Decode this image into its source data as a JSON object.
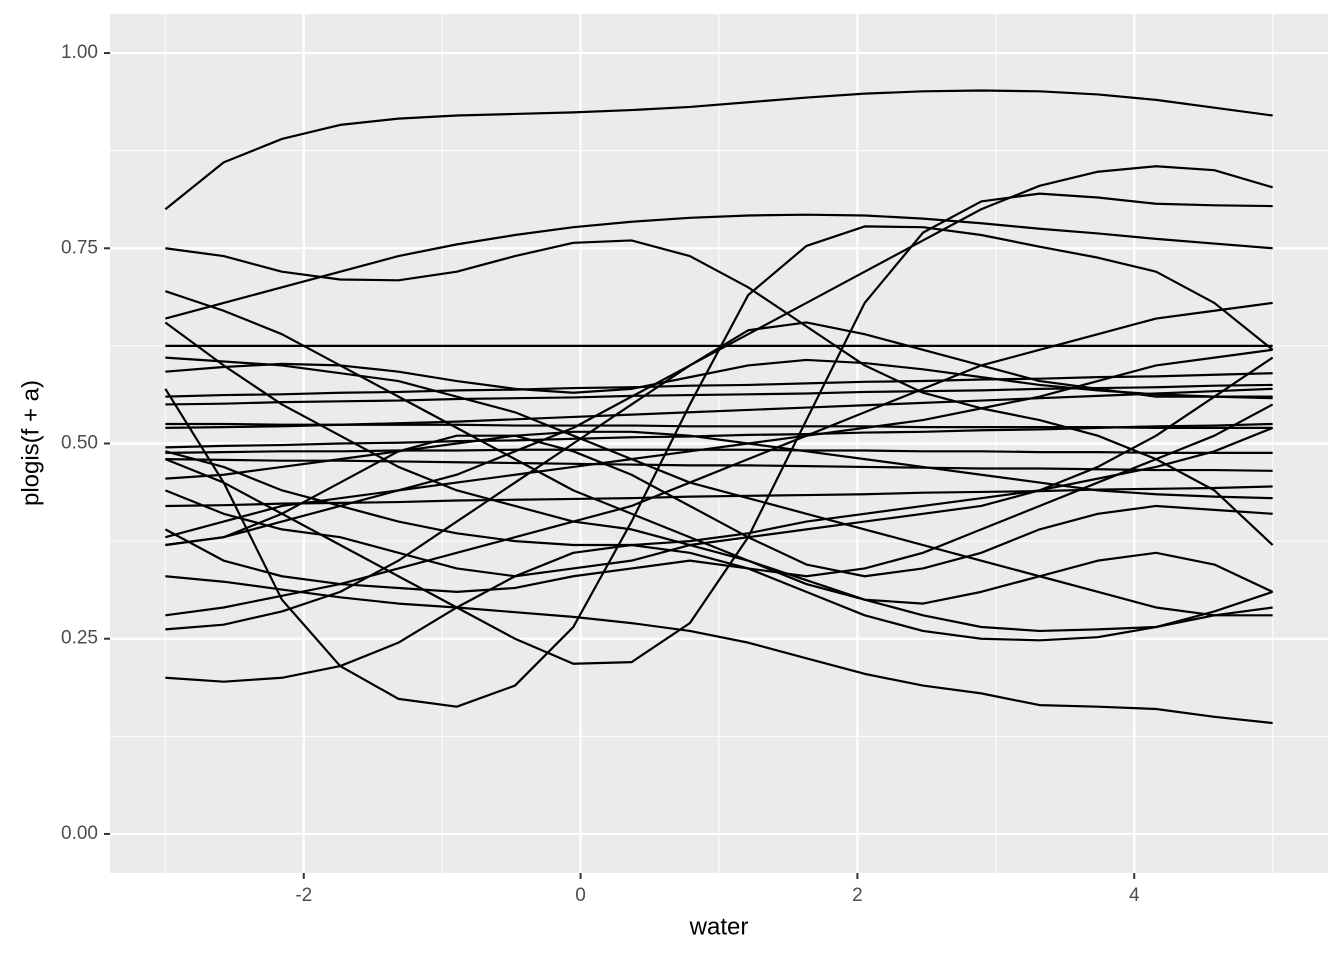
{
  "chart_data": {
    "type": "line",
    "x_label": "water",
    "y_label": "plogis(f + a)",
    "x": [
      -3,
      -2.5789,
      -2.1579,
      -1.7368,
      -1.3158,
      -0.8947,
      -0.4737,
      -0.0526,
      0.3684,
      0.7895,
      1.2105,
      1.6316,
      2.0526,
      2.4737,
      2.8947,
      3.3158,
      3.7368,
      4.1579,
      4.5789,
      5
    ],
    "line_color": "#000000",
    "xlim": [
      -3.4,
      5.4
    ],
    "ylim": [
      -0.05,
      1.05
    ],
    "xticks": [
      -2,
      0,
      2,
      4
    ],
    "yticks": [
      {
        "value": 0,
        "label": "0.00"
      },
      {
        "value": 0.25,
        "label": "0.25"
      },
      {
        "value": 0.5,
        "label": "0.50"
      },
      {
        "value": 0.75,
        "label": "0.75"
      },
      {
        "value": 1,
        "label": "1.00"
      }
    ],
    "grid": true,
    "minor_grid": true,
    "series": [
      {
        "values": [
          0.8,
          0.86,
          0.89,
          0.908,
          0.916,
          0.92,
          0.922,
          0.924,
          0.927,
          0.931,
          0.937,
          0.943,
          0.948,
          0.951,
          0.952,
          0.951,
          0.947,
          0.94,
          0.93,
          0.92
        ]
      },
      {
        "values": [
          0.625,
          0.625,
          0.625,
          0.625,
          0.625,
          0.625,
          0.625,
          0.625,
          0.625,
          0.625,
          0.625,
          0.625,
          0.625,
          0.625,
          0.625,
          0.625,
          0.625,
          0.625,
          0.625,
          0.625
        ]
      },
      {
        "values": [
          0.66,
          0.68,
          0.7,
          0.72,
          0.74,
          0.755,
          0.767,
          0.777,
          0.784,
          0.789,
          0.792,
          0.793,
          0.792,
          0.788,
          0.782,
          0.775,
          0.769,
          0.762,
          0.756,
          0.75
        ]
      },
      {
        "values": [
          0.57,
          0.45,
          0.3,
          0.215,
          0.173,
          0.163,
          0.19,
          0.265,
          0.4,
          0.55,
          0.69,
          0.753,
          0.778,
          0.777,
          0.767,
          0.752,
          0.738,
          0.72,
          0.68,
          0.62
        ]
      },
      {
        "values": [
          0.75,
          0.74,
          0.72,
          0.71,
          0.709,
          0.72,
          0.74,
          0.757,
          0.76,
          0.74,
          0.7,
          0.65,
          0.6,
          0.565,
          0.545,
          0.53,
          0.51,
          0.48,
          0.44,
          0.37
        ]
      },
      {
        "values": [
          0.48,
          0.45,
          0.41,
          0.37,
          0.33,
          0.29,
          0.25,
          0.218,
          0.22,
          0.27,
          0.38,
          0.53,
          0.68,
          0.77,
          0.81,
          0.82,
          0.815,
          0.807,
          0.805,
          0.804
        ]
      },
      {
        "values": [
          0.37,
          0.38,
          0.4,
          0.42,
          0.44,
          0.46,
          0.49,
          0.52,
          0.56,
          0.6,
          0.64,
          0.68,
          0.72,
          0.76,
          0.8,
          0.83,
          0.848,
          0.855,
          0.85,
          0.828
        ]
      },
      {
        "values": [
          0.33,
          0.323,
          0.313,
          0.303,
          0.295,
          0.29,
          0.284,
          0.278,
          0.27,
          0.26,
          0.245,
          0.225,
          0.205,
          0.19,
          0.18,
          0.165,
          0.163,
          0.16,
          0.15,
          0.142
        ]
      },
      {
        "values": [
          0.2,
          0.195,
          0.2,
          0.215,
          0.245,
          0.29,
          0.33,
          0.36,
          0.37,
          0.36,
          0.34,
          0.31,
          0.28,
          0.26,
          0.25,
          0.248,
          0.252,
          0.265,
          0.285,
          0.31
        ]
      },
      {
        "values": [
          0.262,
          0.268,
          0.285,
          0.31,
          0.35,
          0.4,
          0.45,
          0.5,
          0.55,
          0.6,
          0.645,
          0.655,
          0.64,
          0.62,
          0.6,
          0.58,
          0.57,
          0.56,
          0.56,
          0.56
        ]
      },
      {
        "values": [
          0.28,
          0.29,
          0.305,
          0.32,
          0.34,
          0.36,
          0.38,
          0.4,
          0.42,
          0.45,
          0.48,
          0.51,
          0.54,
          0.57,
          0.6,
          0.62,
          0.64,
          0.66,
          0.67,
          0.68
        ]
      },
      {
        "values": [
          0.695,
          0.67,
          0.64,
          0.6,
          0.56,
          0.52,
          0.48,
          0.44,
          0.41,
          0.38,
          0.35,
          0.325,
          0.3,
          0.28,
          0.265,
          0.26,
          0.262,
          0.265,
          0.28,
          0.29
        ]
      },
      {
        "values": [
          0.655,
          0.6,
          0.55,
          0.51,
          0.47,
          0.44,
          0.42,
          0.4,
          0.39,
          0.37,
          0.35,
          0.32,
          0.3,
          0.295,
          0.31,
          0.33,
          0.35,
          0.36,
          0.345,
          0.31
        ]
      },
      {
        "values": [
          0.61,
          0.605,
          0.6,
          0.59,
          0.58,
          0.56,
          0.54,
          0.51,
          0.48,
          0.45,
          0.43,
          0.41,
          0.39,
          0.37,
          0.35,
          0.33,
          0.31,
          0.29,
          0.28,
          0.28
        ]
      },
      {
        "values": [
          0.44,
          0.41,
          0.39,
          0.38,
          0.36,
          0.34,
          0.33,
          0.34,
          0.35,
          0.37,
          0.38,
          0.39,
          0.4,
          0.41,
          0.42,
          0.44,
          0.47,
          0.51,
          0.56,
          0.61
        ]
      },
      {
        "values": [
          0.39,
          0.35,
          0.33,
          0.32,
          0.315,
          0.31,
          0.315,
          0.33,
          0.34,
          0.35,
          0.34,
          0.33,
          0.34,
          0.36,
          0.39,
          0.42,
          0.45,
          0.48,
          0.51,
          0.55
        ]
      },
      {
        "values": [
          0.49,
          0.47,
          0.44,
          0.42,
          0.4,
          0.385,
          0.375,
          0.37,
          0.37,
          0.375,
          0.385,
          0.4,
          0.41,
          0.42,
          0.43,
          0.44,
          0.455,
          0.47,
          0.49,
          0.52
        ]
      },
      {
        "values": [
          0.37,
          0.38,
          0.41,
          0.45,
          0.49,
          0.51,
          0.51,
          0.49,
          0.46,
          0.42,
          0.38,
          0.345,
          0.33,
          0.34,
          0.36,
          0.39,
          0.41,
          0.42,
          0.415,
          0.41
        ]
      },
      {
        "values": [
          0.38,
          0.4,
          0.42,
          0.43,
          0.44,
          0.45,
          0.46,
          0.47,
          0.48,
          0.49,
          0.5,
          0.51,
          0.52,
          0.53,
          0.545,
          0.56,
          0.58,
          0.6,
          0.61,
          0.62
        ]
      },
      {
        "values": [
          0.56,
          0.562,
          0.563,
          0.565,
          0.566,
          0.568,
          0.569,
          0.571,
          0.572,
          0.574,
          0.575,
          0.577,
          0.579,
          0.58,
          0.582,
          0.583,
          0.585,
          0.586,
          0.588,
          0.59
        ]
      },
      {
        "values": [
          0.55,
          0.551,
          0.553,
          0.554,
          0.555,
          0.557,
          0.558,
          0.559,
          0.561,
          0.562,
          0.563,
          0.564,
          0.566,
          0.567,
          0.568,
          0.57,
          0.571,
          0.572,
          0.574,
          0.575
        ]
      },
      {
        "values": [
          0.525,
          0.525,
          0.524,
          0.524,
          0.524,
          0.524,
          0.523,
          0.523,
          0.523,
          0.522,
          0.522,
          0.522,
          0.522,
          0.521,
          0.521,
          0.521,
          0.521,
          0.52,
          0.52,
          0.52
        ]
      },
      {
        "values": [
          0.495,
          0.497,
          0.498,
          0.5,
          0.501,
          0.503,
          0.504,
          0.506,
          0.508,
          0.509,
          0.511,
          0.512,
          0.514,
          0.515,
          0.517,
          0.518,
          0.52,
          0.522,
          0.523,
          0.525
        ]
      },
      {
        "values": [
          0.488,
          0.489,
          0.49,
          0.49,
          0.491,
          0.491,
          0.492,
          0.492,
          0.492,
          0.492,
          0.492,
          0.491,
          0.491,
          0.49,
          0.49,
          0.489,
          0.489,
          0.488,
          0.488,
          0.488
        ]
      },
      {
        "values": [
          0.48,
          0.479,
          0.478,
          0.478,
          0.477,
          0.476,
          0.475,
          0.474,
          0.473,
          0.472,
          0.472,
          0.471,
          0.47,
          0.469,
          0.468,
          0.468,
          0.467,
          0.466,
          0.466,
          0.465
        ]
      },
      {
        "values": [
          0.42,
          0.421,
          0.423,
          0.424,
          0.425,
          0.427,
          0.428,
          0.429,
          0.43,
          0.432,
          0.433,
          0.434,
          0.435,
          0.437,
          0.438,
          0.439,
          0.441,
          0.442,
          0.443,
          0.445
        ]
      },
      {
        "values": [
          0.52,
          0.521,
          0.522,
          0.524,
          0.526,
          0.528,
          0.531,
          0.534,
          0.537,
          0.54,
          0.543,
          0.546,
          0.549,
          0.552,
          0.555,
          0.558,
          0.561,
          0.564,
          0.567,
          0.57
        ]
      },
      {
        "values": [
          0.592,
          0.598,
          0.602,
          0.6,
          0.592,
          0.58,
          0.57,
          0.565,
          0.57,
          0.585,
          0.6,
          0.607,
          0.603,
          0.595,
          0.585,
          0.575,
          0.568,
          0.563,
          0.56,
          0.558
        ]
      },
      {
        "values": [
          0.455,
          0.46,
          0.47,
          0.48,
          0.49,
          0.5,
          0.51,
          0.515,
          0.515,
          0.51,
          0.5,
          0.49,
          0.48,
          0.47,
          0.46,
          0.45,
          0.44,
          0.435,
          0.432,
          0.43
        ]
      }
    ]
  }
}
